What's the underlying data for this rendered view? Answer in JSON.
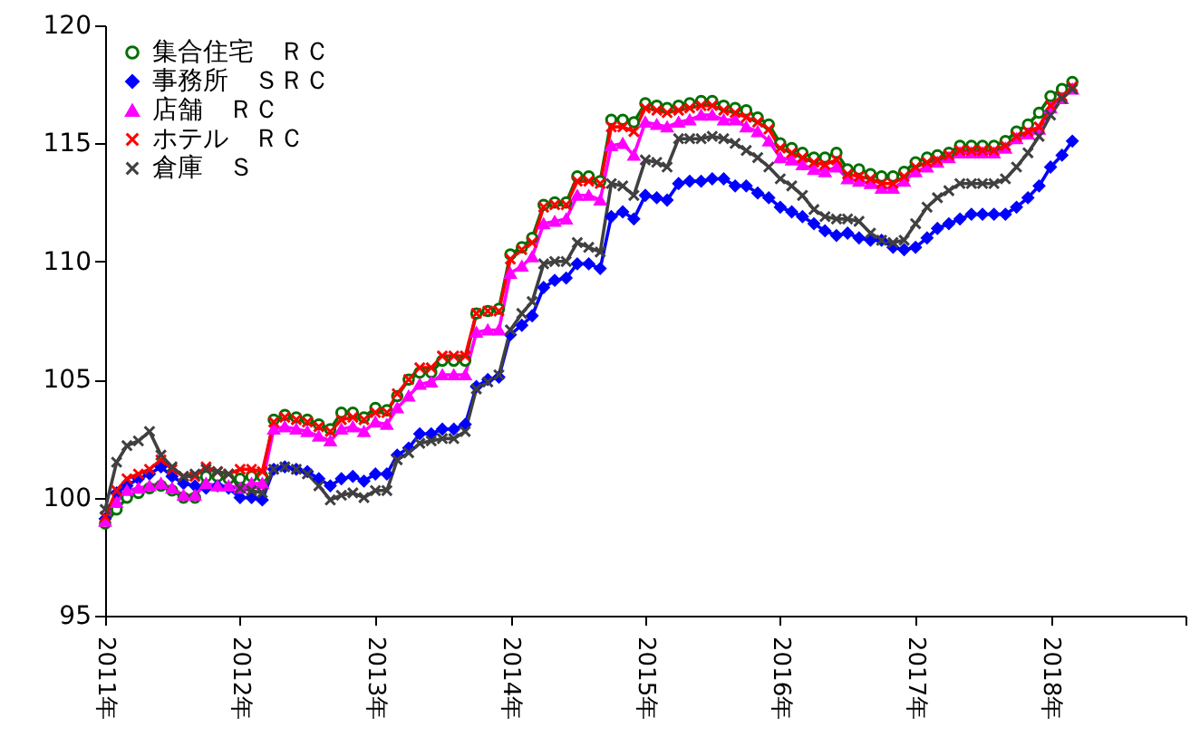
{
  "chart_data": {
    "type": "line",
    "x": [
      "2011-01",
      "2011-02",
      "2011-03",
      "2011-04",
      "2011-05",
      "2011-06",
      "2011-07",
      "2011-08",
      "2011-09",
      "2011-10",
      "2011-11",
      "2011-12",
      "2012-01",
      "2012-02",
      "2012-03",
      "2012-04",
      "2012-05",
      "2012-06",
      "2012-07",
      "2012-08",
      "2012-09",
      "2012-10",
      "2012-11",
      "2012-12",
      "2013-01",
      "2013-02",
      "2013-03",
      "2013-04",
      "2013-05",
      "2013-06",
      "2013-07",
      "2013-08",
      "2013-09",
      "2013-10",
      "2013-11",
      "2013-12",
      "2014-01",
      "2014-02",
      "2014-03",
      "2014-04",
      "2014-05",
      "2014-06",
      "2014-07",
      "2014-08",
      "2014-09",
      "2014-10",
      "2014-11",
      "2014-12",
      "2015-01",
      "2015-02",
      "2015-03",
      "2015-04",
      "2015-05",
      "2015-06",
      "2015-07",
      "2015-08",
      "2015-09",
      "2015-10",
      "2015-11",
      "2015-12",
      "2016-01",
      "2016-02",
      "2016-03",
      "2016-04",
      "2016-05",
      "2016-06",
      "2016-07",
      "2016-08",
      "2016-09",
      "2016-10",
      "2016-11",
      "2016-12",
      "2017-01",
      "2017-02",
      "2017-03",
      "2017-04",
      "2017-05",
      "2017-06",
      "2017-07",
      "2017-08",
      "2017-09",
      "2017-10",
      "2017-11",
      "2017-12",
      "2018-01",
      "2018-02",
      "2018-03"
    ],
    "series": [
      {
        "name": "集合住宅　ＲＣ",
        "color": "#007000",
        "marker": "circle",
        "values": [
          98.9,
          99.5,
          100.0,
          100.2,
          100.4,
          100.5,
          100.3,
          100.0,
          100.0,
          100.9,
          100.9,
          100.8,
          100.8,
          100.9,
          100.9,
          103.3,
          103.5,
          103.4,
          103.3,
          103.1,
          102.9,
          103.6,
          103.6,
          103.4,
          103.8,
          103.7,
          104.3,
          105.0,
          105.3,
          105.3,
          105.8,
          105.8,
          105.8,
          107.8,
          107.9,
          108.0,
          110.3,
          110.6,
          111.0,
          112.4,
          112.5,
          112.5,
          113.6,
          113.6,
          113.4,
          116.0,
          116.0,
          115.9,
          116.7,
          116.6,
          116.5,
          116.6,
          116.7,
          116.8,
          116.8,
          116.6,
          116.5,
          116.4,
          116.1,
          115.8,
          115.0,
          114.8,
          114.6,
          114.4,
          114.4,
          114.6,
          113.9,
          113.9,
          113.7,
          113.6,
          113.6,
          113.8,
          114.2,
          114.4,
          114.5,
          114.6,
          114.9,
          114.9,
          114.9,
          114.9,
          115.1,
          115.5,
          115.8,
          116.3,
          117.0,
          117.3,
          117.6
        ]
      },
      {
        "name": "事務所　ＳＲＣ",
        "color": "#0000ff",
        "marker": "diamond",
        "values": [
          99.1,
          100.2,
          100.5,
          100.8,
          101.0,
          101.3,
          100.9,
          100.6,
          100.5,
          100.4,
          100.5,
          100.4,
          100.0,
          100.0,
          99.9,
          101.2,
          101.3,
          101.2,
          101.1,
          100.8,
          100.5,
          100.8,
          100.9,
          100.7,
          101.0,
          101.0,
          101.8,
          102.1,
          102.7,
          102.7,
          102.9,
          102.9,
          103.1,
          104.7,
          105.0,
          105.1,
          106.9,
          107.3,
          107.7,
          108.9,
          109.2,
          109.3,
          109.9,
          109.9,
          109.7,
          111.9,
          112.1,
          111.8,
          112.8,
          112.7,
          112.6,
          113.3,
          113.4,
          113.4,
          113.5,
          113.5,
          113.2,
          113.2,
          112.9,
          112.7,
          112.3,
          112.1,
          111.9,
          111.6,
          111.3,
          111.1,
          111.2,
          111.0,
          110.9,
          110.9,
          110.6,
          110.5,
          110.6,
          111.0,
          111.4,
          111.6,
          111.8,
          112.0,
          112.0,
          112.0,
          112.0,
          112.3,
          112.7,
          113.2,
          114.0,
          114.5,
          115.1
        ]
      },
      {
        "name": "店舗　ＲＣ",
        "color": "#ff00ff",
        "marker": "triangle",
        "values": [
          99.0,
          99.8,
          100.3,
          100.4,
          100.5,
          100.6,
          100.4,
          100.1,
          100.1,
          100.6,
          100.5,
          100.5,
          100.4,
          100.6,
          100.6,
          102.9,
          103.0,
          102.9,
          102.8,
          102.6,
          102.4,
          102.9,
          103.0,
          102.8,
          103.2,
          103.1,
          103.8,
          104.3,
          104.8,
          104.9,
          105.2,
          105.2,
          105.2,
          107.0,
          107.1,
          107.1,
          109.5,
          109.8,
          110.2,
          111.6,
          111.7,
          111.8,
          112.8,
          112.8,
          112.6,
          114.9,
          115.0,
          114.5,
          115.9,
          115.8,
          115.7,
          115.9,
          116.0,
          116.2,
          116.2,
          116.0,
          116.0,
          115.7,
          115.5,
          115.1,
          114.4,
          114.3,
          114.1,
          113.9,
          113.8,
          114.0,
          113.5,
          113.4,
          113.3,
          113.1,
          113.1,
          113.4,
          113.8,
          114.0,
          114.2,
          114.4,
          114.6,
          114.6,
          114.6,
          114.6,
          114.8,
          115.2,
          115.4,
          115.6,
          116.5,
          116.9,
          117.3
        ]
      },
      {
        "name": "ホテル　ＲＣ",
        "color": "#ff0000",
        "marker": "cross",
        "values": [
          99.2,
          100.3,
          100.8,
          101.0,
          101.2,
          101.6,
          101.2,
          100.9,
          100.9,
          101.3,
          101.1,
          101.0,
          101.2,
          101.2,
          101.1,
          103.2,
          103.4,
          103.3,
          103.2,
          103.0,
          102.8,
          103.3,
          103.4,
          103.3,
          103.6,
          103.6,
          104.4,
          105.0,
          105.5,
          105.5,
          106.0,
          106.0,
          106.0,
          107.8,
          107.9,
          107.9,
          110.1,
          110.5,
          110.8,
          112.3,
          112.4,
          112.4,
          113.4,
          113.4,
          113.3,
          115.7,
          115.7,
          115.5,
          116.5,
          116.4,
          116.3,
          116.4,
          116.5,
          116.6,
          116.6,
          116.4,
          116.3,
          116.1,
          115.9,
          115.6,
          114.8,
          114.6,
          114.4,
          114.2,
          114.1,
          114.3,
          113.7,
          113.6,
          113.5,
          113.3,
          113.3,
          113.6,
          114.0,
          114.2,
          114.3,
          114.5,
          114.7,
          114.7,
          114.7,
          114.7,
          114.9,
          115.3,
          115.5,
          115.7,
          116.6,
          117.0,
          117.4
        ]
      },
      {
        "name": "倉庫　Ｓ",
        "color": "#404040",
        "marker": "cross",
        "values": [
          99.5,
          101.5,
          102.2,
          102.4,
          102.8,
          101.8,
          101.3,
          100.9,
          101.0,
          101.2,
          101.1,
          101.0,
          100.4,
          100.3,
          100.2,
          101.2,
          101.3,
          101.2,
          101.0,
          100.5,
          99.9,
          100.1,
          100.2,
          100.0,
          100.3,
          100.3,
          101.6,
          101.9,
          102.3,
          102.4,
          102.5,
          102.5,
          102.8,
          104.6,
          104.9,
          105.2,
          107.1,
          107.8,
          108.3,
          109.9,
          110.0,
          110.0,
          110.8,
          110.6,
          110.4,
          113.3,
          113.2,
          112.8,
          114.3,
          114.2,
          114.0,
          115.2,
          115.2,
          115.2,
          115.3,
          115.2,
          115.0,
          114.7,
          114.4,
          114.0,
          113.5,
          113.2,
          112.8,
          112.2,
          111.9,
          111.8,
          111.8,
          111.7,
          111.2,
          110.9,
          110.8,
          110.9,
          111.6,
          112.3,
          112.7,
          113.0,
          113.3,
          113.3,
          113.3,
          113.3,
          113.5,
          114.0,
          114.6,
          115.3,
          116.2,
          116.9,
          117.3
        ]
      }
    ],
    "xlim": [
      "2011-01",
      "2019-01"
    ],
    "xticks": [
      {
        "value": "2011-01",
        "label": "2011年"
      },
      {
        "value": "2012-01",
        "label": "2012年"
      },
      {
        "value": "2013-01",
        "label": "2013年"
      },
      {
        "value": "2014-01",
        "label": "2014年"
      },
      {
        "value": "2015-01",
        "label": "2015年"
      },
      {
        "value": "2016-01",
        "label": "2016年"
      },
      {
        "value": "2017-01",
        "label": "2017年"
      },
      {
        "value": "2018-01",
        "label": "2018年"
      },
      {
        "value": "2019-01",
        "label": null
      }
    ],
    "ylim": [
      95,
      120
    ],
    "yticks": [
      95,
      100,
      105,
      110,
      115,
      120
    ],
    "grid": false,
    "legend": "top left",
    "line_style": "solid"
  }
}
